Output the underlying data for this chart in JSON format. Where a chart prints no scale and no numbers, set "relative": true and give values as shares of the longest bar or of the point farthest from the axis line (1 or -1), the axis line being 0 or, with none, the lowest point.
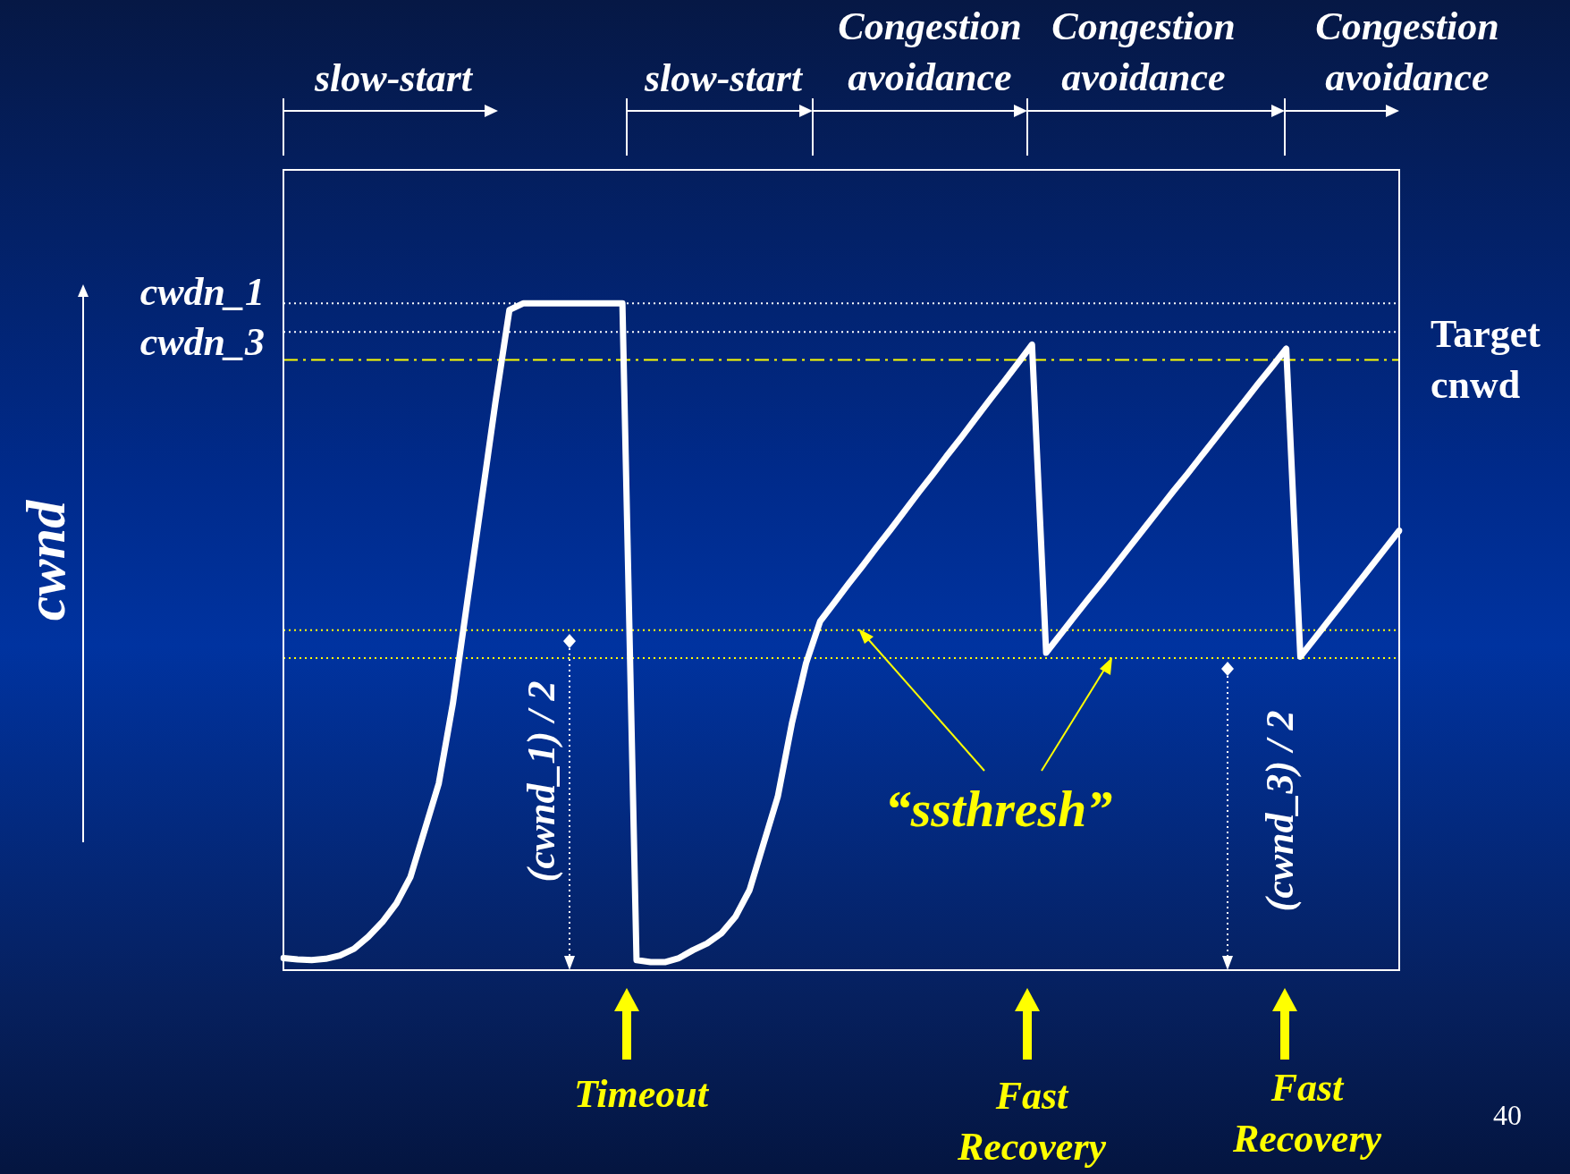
{
  "chart_data": {
    "type": "line",
    "relative": true,
    "ylabel": "cwnd",
    "legend": false,
    "marker": "none",
    "line_style": "solid",
    "categories": [
      null,
      null,
      null,
      null,
      null,
      null,
      null,
      null,
      null,
      null,
      null,
      null,
      null,
      null,
      null,
      null,
      null,
      null,
      null,
      null,
      null,
      null,
      null,
      null,
      null,
      null,
      null,
      null,
      null,
      null,
      null,
      null,
      null,
      null,
      null,
      null,
      null,
      null,
      null,
      null,
      null,
      null,
      null,
      null,
      null,
      null,
      null,
      null,
      null,
      null,
      null,
      null,
      null,
      null,
      null,
      null,
      null,
      null,
      null,
      null,
      null,
      null,
      null,
      null,
      null,
      null,
      null,
      null,
      null,
      null,
      null,
      null,
      null,
      null,
      null,
      null,
      null,
      null,
      null,
      null
    ],
    "series": [
      {
        "color": "#ffffff",
        "values": [
          0.018,
          0.016,
          0.015,
          0.017,
          0.022,
          0.032,
          0.05,
          0.072,
          0.1,
          0.14,
          0.21,
          0.28,
          0.4,
          0.55,
          0.7,
          0.85,
          0.99,
          1,
          1,
          1,
          1,
          1,
          1,
          1,
          1,
          0.015,
          0.012,
          0.012,
          0.018,
          0.03,
          0.04,
          0.055,
          0.08,
          0.12,
          0.19,
          0.26,
          0.37,
          0.46,
          0.523,
          0.551,
          0.579,
          0.606,
          0.634,
          0.661,
          0.689,
          0.717,
          0.744,
          0.772,
          0.799,
          0.827,
          0.855,
          0.882,
          0.91,
          0.938,
          0.476,
          0.503,
          0.53,
          0.557,
          0.583,
          0.61,
          0.637,
          0.664,
          0.691,
          0.718,
          0.744,
          0.771,
          0.798,
          0.825,
          0.852,
          0.879,
          0.905,
          0.932,
          0.47,
          0.497,
          0.524,
          0.551,
          0.578,
          0.605,
          0.632,
          0.659
        ]
      }
    ],
    "ref_lines": [
      {
        "axis": "y",
        "value": 1,
        "label": "cwdn_1",
        "color": "#ffffff",
        "line_style": "dotted"
      },
      {
        "axis": "y",
        "value": 0.957,
        "label": "cwdn_3",
        "color": "#ffffff",
        "line_style": "dotted"
      },
      {
        "axis": "y",
        "value": 0.915,
        "label": "Target cnwd",
        "color": "#ffff00",
        "line_style": "dashed"
      },
      {
        "axis": "y",
        "value": 0.51,
        "color": "#ffff00",
        "line_style": "dotted"
      },
      {
        "axis": "y",
        "value": 0.468,
        "color": "#ffff00",
        "line_style": "dotted"
      }
    ],
    "annotations": [
      "slow-start",
      "slow-start",
      "Congestion avoidance",
      "Congestion avoidance",
      "Congestion avoidance",
      "“ssthresh”",
      "(cwnd_1) / 2",
      "(cwnd_3) / 2",
      "Timeout",
      "Fast Recovery",
      "Fast Recovery",
      "40"
    ]
  }
}
